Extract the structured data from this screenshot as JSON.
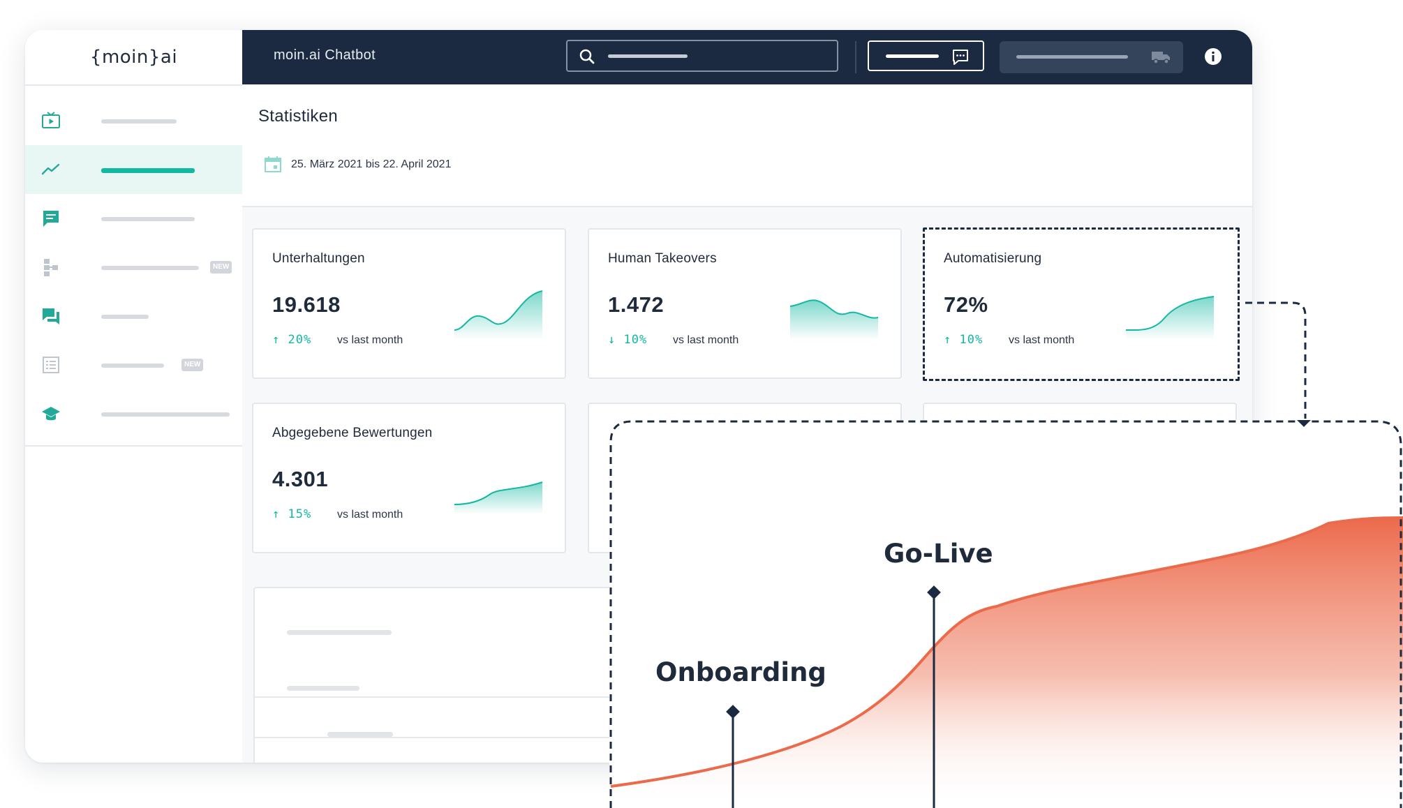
{
  "sidebar": {
    "logo": "{moin}ai",
    "items": [
      {
        "icon": "tv-play-icon",
        "active": false,
        "badge": ""
      },
      {
        "icon": "trend-chart-icon",
        "active": true,
        "badge": ""
      },
      {
        "icon": "chat-bubble-icon",
        "active": false,
        "badge": ""
      },
      {
        "icon": "flow-tree-icon",
        "active": false,
        "badge": "NEW"
      },
      {
        "icon": "forum-icon",
        "active": false,
        "badge": ""
      },
      {
        "icon": "checklist-icon",
        "active": false,
        "badge": "NEW"
      },
      {
        "icon": "graduation-cap-icon",
        "active": false,
        "badge": ""
      }
    ]
  },
  "topbar": {
    "title": "moin.ai Chatbot",
    "search_icon": "search-icon",
    "chat_icon": "chat-icon",
    "delivery_icon": "truck-icon",
    "info_icon": "info-icon"
  },
  "page": {
    "title": "Statistiken",
    "date_range": "25. März 2021 bis 22. April 2021"
  },
  "cards": [
    {
      "title": "Unterhaltungen",
      "value": "19.618",
      "delta": "20%",
      "direction": "up",
      "arrow": "↑",
      "vs": "vs last month"
    },
    {
      "title": "Human Takeovers",
      "value": "1.472",
      "delta": "10%",
      "direction": "down",
      "arrow": "↓",
      "vs": "vs last month"
    },
    {
      "title": "Automatisierung",
      "value": "72%",
      "delta": "10%",
      "direction": "up",
      "arrow": "↑",
      "vs": "vs last month"
    },
    {
      "title": "Abgegebene Bewertungen",
      "value": "4.301",
      "delta": "15%",
      "direction": "up",
      "arrow": "↑",
      "vs": "vs last month"
    }
  ],
  "overlay": {
    "milestones": [
      "Onboarding",
      "Go-Live"
    ]
  },
  "colors": {
    "navy": "#1b2a40",
    "teal": "#13b8a1",
    "orange": "#ec6a4c"
  }
}
